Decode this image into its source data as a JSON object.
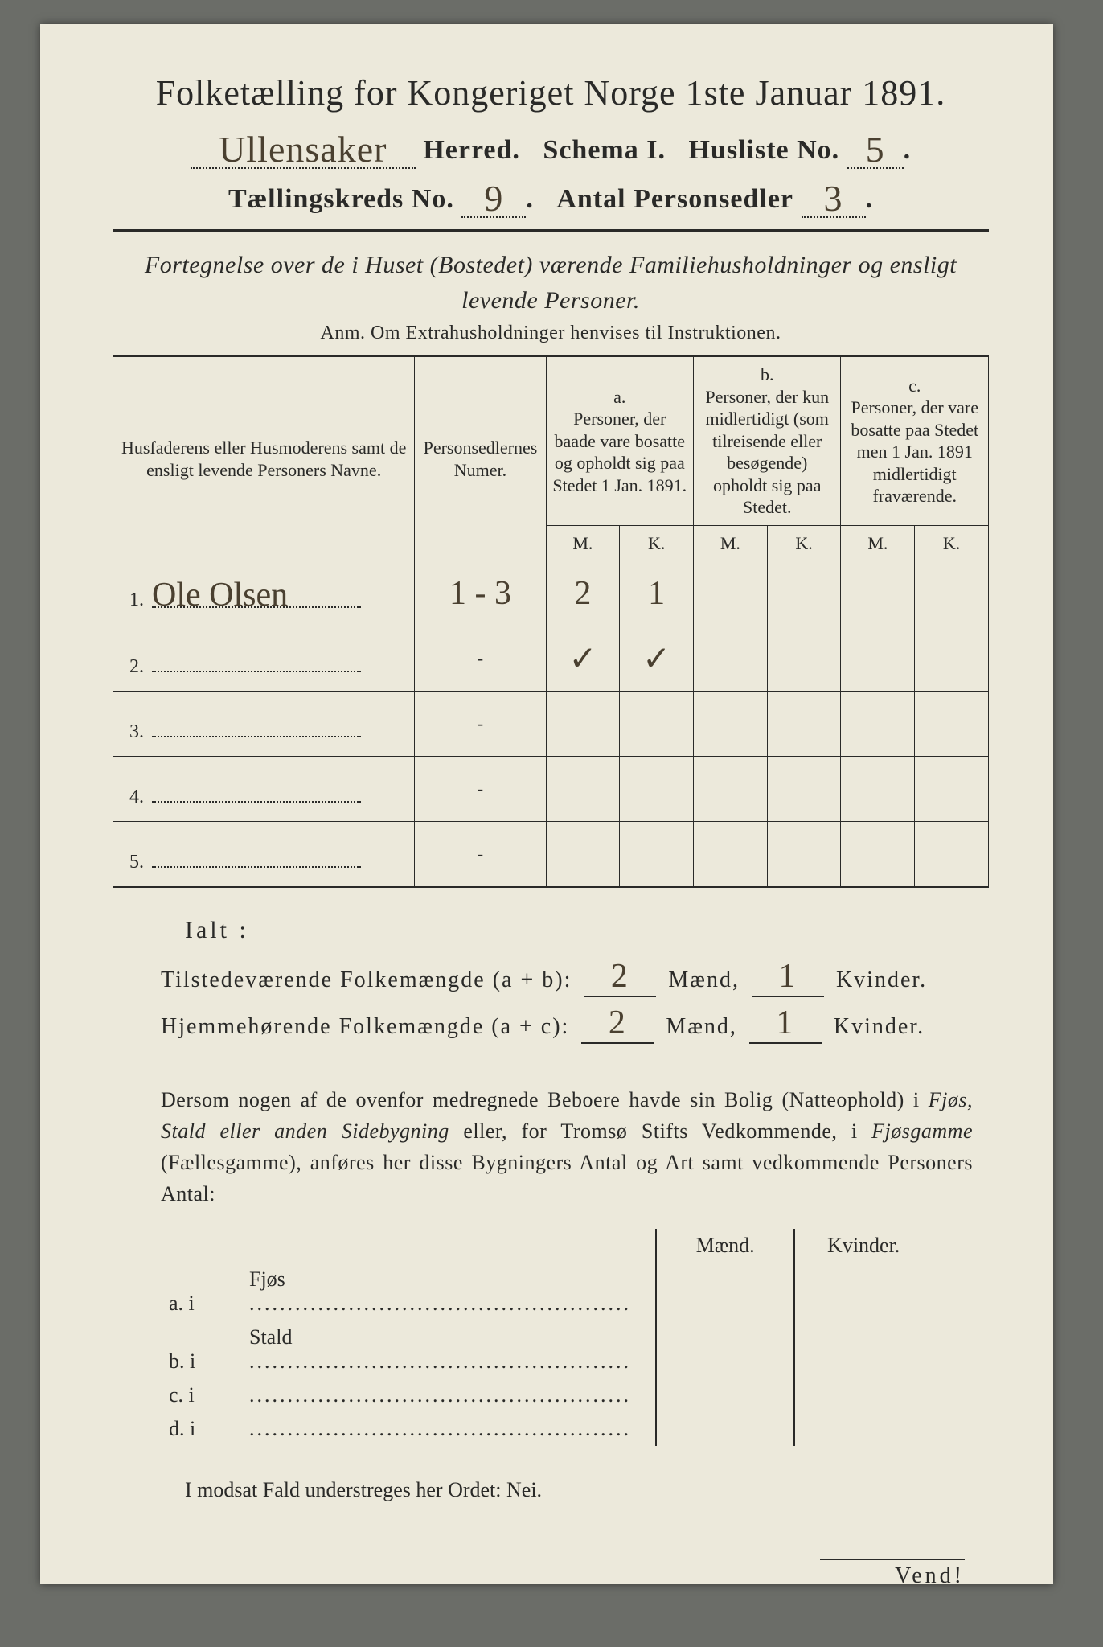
{
  "colors": {
    "paper": "#ece9db",
    "ink": "#2a2a28",
    "handwriting": "#4a4030",
    "background": "#6b6d68"
  },
  "typography": {
    "title_fontsize": 44,
    "header_fontsize": 34,
    "body_fontsize": 26,
    "table_fontsize": 22,
    "hand_fontsize": 46
  },
  "header": {
    "title": "Folketælling for Kongeriget Norge 1ste Januar 1891.",
    "herred_hand": "Ullensaker",
    "herred_label": "Herred.",
    "schema_label": "Schema I.",
    "husliste_label": "Husliste No.",
    "husliste_no": "5",
    "kreds_label": "Tællingskreds No.",
    "kreds_no": "9",
    "personsedler_label": "Antal Personsedler",
    "personsedler_no": "3"
  },
  "subtitle": {
    "line1": "Fortegnelse over de i Huset (Bostedet) værende Familiehusholdninger og ensligt",
    "line2": "levende Personer.",
    "anm": "Anm.  Om Extrahusholdninger henvises til Instruktionen."
  },
  "table": {
    "col_name": "Husfaderens eller Husmoderens samt de ensligt levende Personers Navne.",
    "col_numer": "Personsedlernes Numer.",
    "group_a_tag": "a.",
    "group_a": "Personer, der baade vare bosatte og opholdt sig paa Stedet 1 Jan. 1891.",
    "group_b_tag": "b.",
    "group_b": "Personer, der kun midlertidigt (som tilreisende eller besøgende) opholdt sig paa Stedet.",
    "group_c_tag": "c.",
    "group_c": "Personer, der vare bosatte paa Stedet men 1 Jan. 1891 midlertidigt fraværende.",
    "M": "M.",
    "K": "K.",
    "rows": [
      {
        "idx": "1.",
        "name": "Ole Olsen",
        "numer": "1 - 3",
        "aM": "2",
        "aK": "1",
        "bM": "",
        "bK": "",
        "cM": "",
        "cK": ""
      },
      {
        "idx": "2.",
        "name": "",
        "numer": "-",
        "aM": "✓",
        "aK": "✓",
        "bM": "",
        "bK": "",
        "cM": "",
        "cK": ""
      },
      {
        "idx": "3.",
        "name": "",
        "numer": "-",
        "aM": "",
        "aK": "",
        "bM": "",
        "bK": "",
        "cM": "",
        "cK": ""
      },
      {
        "idx": "4.",
        "name": "",
        "numer": "-",
        "aM": "",
        "aK": "",
        "bM": "",
        "bK": "",
        "cM": "",
        "cK": ""
      },
      {
        "idx": "5.",
        "name": "",
        "numer": "-",
        "aM": "",
        "aK": "",
        "bM": "",
        "bK": "",
        "cM": "",
        "cK": ""
      }
    ]
  },
  "totals": {
    "ialt": "Ialt :",
    "line1_label": "Tilstedeværende Folkemængde (a + b):",
    "line2_label": "Hjemmehørende Folkemængde (a + c):",
    "maend": "Mænd,",
    "kvinder": "Kvinder.",
    "l1_m": "2",
    "l1_k": "1",
    "l2_m": "2",
    "l2_k": "1"
  },
  "paragraph": {
    "text1": "Dersom nogen af de ovenfor medregnede Beboere havde sin Bolig (Natteophold) i ",
    "it1": "Fjøs, Stald eller anden Sidebygning",
    "text2": " eller, for Tromsø Stifts Vedkommende, i ",
    "it2": "Fjøsgamme",
    "text3": " (Fællesgamme), anføres her disse Bygningers Antal og Art samt vedkommende Personers Antal:"
  },
  "buildings": {
    "head_m": "Mænd.",
    "head_k": "Kvinder.",
    "rows": [
      {
        "tag": "a.  i",
        "label": "Fjøs",
        "m": "",
        "k": ""
      },
      {
        "tag": "b.  i",
        "label": "Stald",
        "m": "",
        "k": ""
      },
      {
        "tag": "c.  i",
        "label": "",
        "m": "",
        "k": ""
      },
      {
        "tag": "d.  i",
        "label": "",
        "m": "",
        "k": ""
      }
    ]
  },
  "closing": "I modsat Fald understreges her Ordet: Nei.",
  "vend": "Vend!"
}
